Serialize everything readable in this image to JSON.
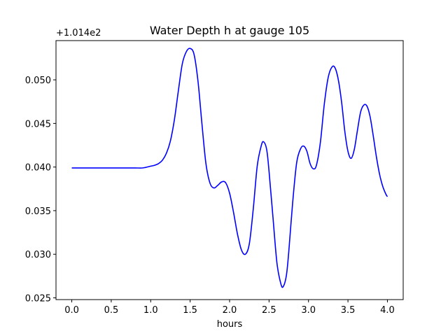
{
  "chart_data": {
    "type": "line",
    "title": "Water Depth h at gauge 105",
    "xlabel": "hours",
    "ylabel": "",
    "y_offset_label": "+1.014e2",
    "y_offset": 101.4,
    "xlim": [
      -0.2,
      4.2
    ],
    "ylim": [
      0.0248,
      0.0545
    ],
    "xticks": [
      0.0,
      0.5,
      1.0,
      1.5,
      2.0,
      2.5,
      3.0,
      3.5,
      4.0
    ],
    "xtick_labels": [
      "0.0",
      "0.5",
      "1.0",
      "1.5",
      "2.0",
      "2.5",
      "3.0",
      "3.5",
      "4.0"
    ],
    "yticks": [
      0.025,
      0.03,
      0.035,
      0.04,
      0.045,
      0.05
    ],
    "ytick_labels": [
      "0.025",
      "0.030",
      "0.035",
      "0.040",
      "0.045",
      "0.050"
    ],
    "grid": false,
    "series": [
      {
        "color": "#0000ff",
        "x": [
          0.0,
          0.2,
          0.4,
          0.6,
          0.8,
          0.9,
          1.0,
          1.05,
          1.1,
          1.15,
          1.2,
          1.25,
          1.3,
          1.35,
          1.4,
          1.45,
          1.5,
          1.55,
          1.6,
          1.65,
          1.7,
          1.75,
          1.8,
          1.85,
          1.9,
          1.95,
          2.0,
          2.05,
          2.1,
          2.15,
          2.2,
          2.25,
          2.3,
          2.35,
          2.4,
          2.43,
          2.47,
          2.5,
          2.55,
          2.6,
          2.65,
          2.68,
          2.72,
          2.75,
          2.8,
          2.85,
          2.9,
          2.94,
          2.98,
          3.02,
          3.06,
          3.1,
          3.15,
          3.2,
          3.25,
          3.3,
          3.34,
          3.38,
          3.42,
          3.46,
          3.5,
          3.54,
          3.58,
          3.62,
          3.66,
          3.7,
          3.74,
          3.78,
          3.82,
          3.86,
          3.9,
          3.94,
          3.98,
          4.0
        ],
        "y": [
          0.0399,
          0.0399,
          0.0399,
          0.0399,
          0.0399,
          0.0399,
          0.0401,
          0.0402,
          0.0404,
          0.0408,
          0.0416,
          0.043,
          0.0454,
          0.0487,
          0.0518,
          0.0532,
          0.0536,
          0.0529,
          0.0498,
          0.0449,
          0.0404,
          0.0382,
          0.0376,
          0.0379,
          0.0383,
          0.0382,
          0.037,
          0.0348,
          0.0323,
          0.0305,
          0.03,
          0.0312,
          0.0352,
          0.0401,
          0.0424,
          0.0429,
          0.042,
          0.0395,
          0.0342,
          0.029,
          0.0266,
          0.0263,
          0.0276,
          0.0303,
          0.036,
          0.0405,
          0.0421,
          0.0424,
          0.0418,
          0.0404,
          0.0398,
          0.0402,
          0.0428,
          0.0472,
          0.0503,
          0.0515,
          0.0513,
          0.0499,
          0.0474,
          0.0441,
          0.0418,
          0.041,
          0.042,
          0.0442,
          0.0463,
          0.0471,
          0.047,
          0.0458,
          0.0436,
          0.0412,
          0.0392,
          0.0378,
          0.0369,
          0.0366
        ]
      }
    ]
  }
}
